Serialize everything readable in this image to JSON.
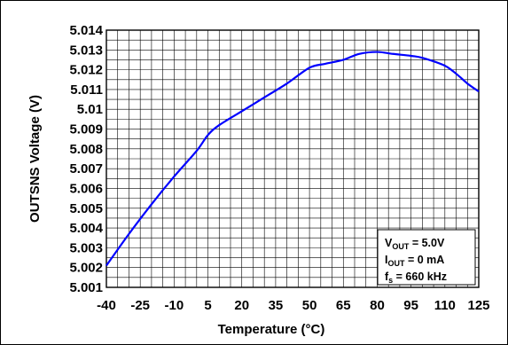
{
  "chart_data": {
    "type": "line",
    "xlabel": "Temperature (°C)",
    "ylabel": "OUTSNS Voltage (V)",
    "xlim": [
      -40,
      125
    ],
    "ylim": [
      5.001,
      5.014
    ],
    "x_ticks": [
      "-40",
      "-25",
      "-10",
      "5",
      "20",
      "35",
      "50",
      "65",
      "80",
      "95",
      "110",
      "125"
    ],
    "y_ticks": [
      "5.014",
      "5.013",
      "5.012",
      "5.011",
      "5.01",
      "5.009",
      "5.008",
      "5.007",
      "5.006",
      "5.005",
      "5.004",
      "5.003",
      "5.002",
      "5.001"
    ],
    "grid": true,
    "series": [
      {
        "color": "#0000ff",
        "points": [
          [
            -40,
            5.0021
          ],
          [
            -30,
            5.0037
          ],
          [
            -20,
            5.0052
          ],
          [
            -10,
            5.0066
          ],
          [
            0,
            5.0079
          ],
          [
            5,
            5.0087
          ],
          [
            10,
            5.0092
          ],
          [
            20,
            5.0099
          ],
          [
            30,
            5.0106
          ],
          [
            40,
            5.0113
          ],
          [
            50,
            5.0121
          ],
          [
            57,
            5.0123
          ],
          [
            65,
            5.0125
          ],
          [
            72,
            5.0128
          ],
          [
            80,
            5.0129
          ],
          [
            87,
            5.0128
          ],
          [
            95,
            5.0127
          ],
          [
            100,
            5.0126
          ],
          [
            110,
            5.0122
          ],
          [
            116,
            5.0117
          ],
          [
            120,
            5.0113
          ],
          [
            125,
            5.0109
          ]
        ]
      }
    ],
    "annotations": [
      {
        "main": "V",
        "sub": "OUT",
        "rest": " = 5.0V"
      },
      {
        "main": "I",
        "sub": "OUT",
        "rest": " = 0 mA"
      },
      {
        "main": "f",
        "sub": "s",
        "rest": " = 660 kHz"
      }
    ]
  }
}
